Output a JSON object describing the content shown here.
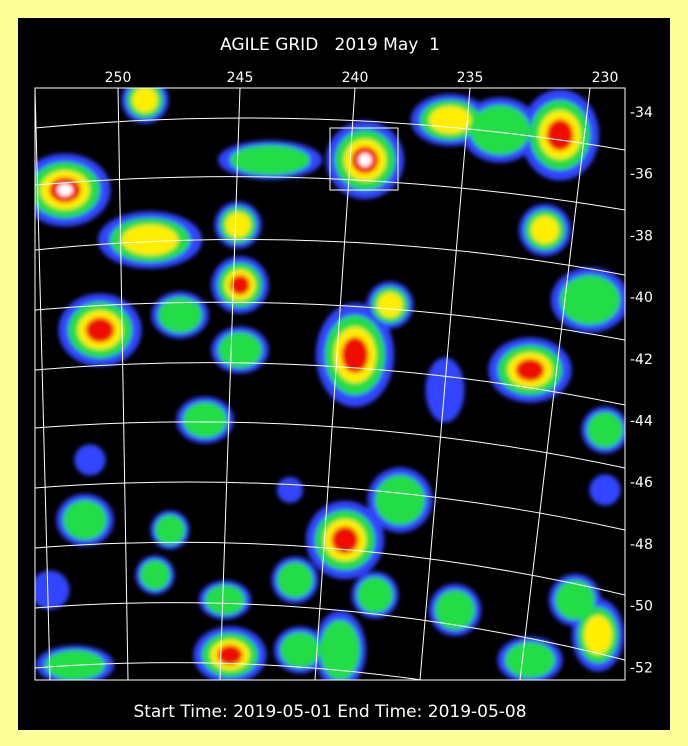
{
  "header": {
    "title": "AGILE GRID   2019 May  1"
  },
  "axes": {
    "top": [
      "250",
      "245",
      "240",
      "235",
      "230"
    ],
    "right": [
      "-34",
      "-36",
      "-38",
      "-40",
      "-42",
      "-44",
      "-46",
      "-48",
      "-50",
      "-52"
    ]
  },
  "footer": {
    "text": "Start Time: 2019-05-01 End Time: 2019-05-08"
  }
}
